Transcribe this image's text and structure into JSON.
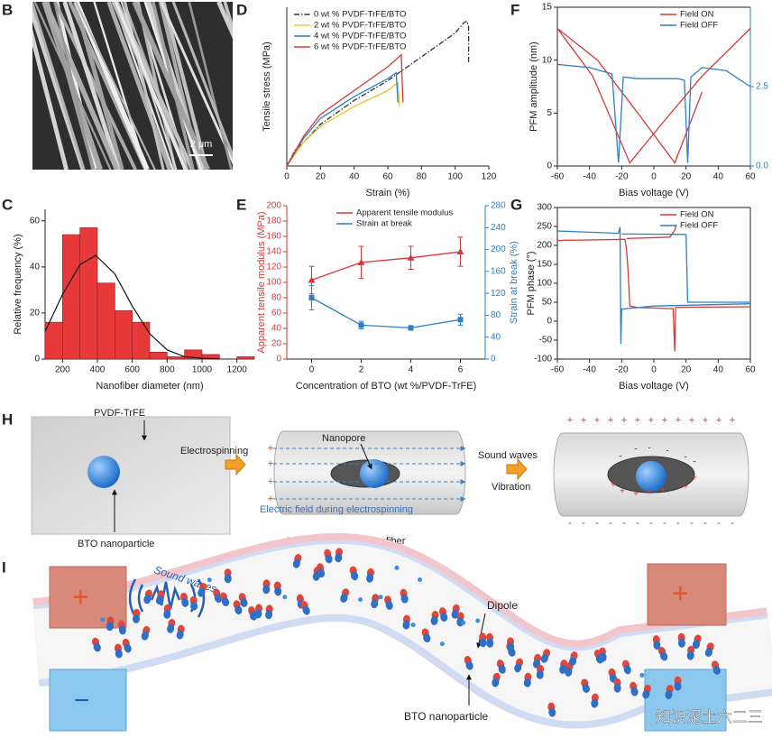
{
  "panel_labels": [
    "B",
    "C",
    "D",
    "E",
    "F",
    "G",
    "H",
    "I"
  ],
  "panel_b": {
    "scale_bar": "2 μm"
  },
  "chart_data": [
    {
      "type": "line",
      "xlabel": "Strain (%)",
      "ylabel": "Tensile stress (MPa)",
      "xlim": [
        0,
        120
      ],
      "xticks": [
        0,
        20,
        40,
        60,
        80,
        100,
        120
      ],
      "ylim": [
        0,
        80
      ],
      "legend": "upper left",
      "series": [
        {
          "name": "0 wt % PVDF-TrFE/BTO",
          "color": "#333333",
          "dash": "dash-dot",
          "x": [
            0,
            5,
            10,
            20,
            40,
            60,
            80,
            100,
            105,
            107,
            108,
            108
          ],
          "values": [
            0,
            8,
            12,
            21,
            33,
            43,
            55,
            67,
            72,
            73,
            70,
            52
          ]
        },
        {
          "name": "2 wt % PVDF-TrFE/BTO",
          "color": "#f0c22e",
          "x": [
            0,
            10,
            20,
            40,
            60,
            66,
            67
          ],
          "values": [
            0,
            12,
            20,
            30,
            38,
            42,
            30
          ]
        },
        {
          "name": "4 wt % PVDF-TrFE/BTO",
          "color": "#2f7fc1",
          "x": [
            0,
            10,
            20,
            40,
            60,
            65,
            66
          ],
          "values": [
            0,
            14,
            24,
            35,
            44,
            47,
            32
          ]
        },
        {
          "name": "6 wt % PVDF-TrFE/BTO",
          "color": "#d43a3a",
          "x": [
            0,
            10,
            20,
            40,
            60,
            68,
            69
          ],
          "values": [
            0,
            15,
            26,
            38,
            50,
            56,
            32
          ]
        }
      ]
    },
    {
      "type": "line",
      "xlabel": "Bias voltage (V)",
      "ylabel": "PFM amplitude (nm)",
      "xlim": [
        -60,
        60
      ],
      "xticks": [
        -60,
        -40,
        -20,
        0,
        20,
        40,
        60
      ],
      "ylim": [
        0,
        15
      ],
      "yticks": [
        0,
        5,
        10,
        15
      ],
      "y2lim": [
        0,
        5
      ],
      "y2ticks": [
        {
          "value": 0,
          "label": "0.0"
        },
        {
          "value": 2.5,
          "label": "2.5"
        }
      ],
      "y2color": "#2f7fc1",
      "legend": "upper right",
      "series": [
        {
          "name": "Field ON",
          "color": "#d43a3a",
          "x": [
            -60,
            -38,
            -15,
            5,
            30,
            60,
            60,
            30,
            13,
            -10,
            -35,
            -60
          ],
          "values": [
            13,
            8.5,
            0.3,
            4,
            8.5,
            13,
            null,
            7,
            0.3,
            5,
            10,
            13
          ]
        },
        {
          "name": "Field OFF",
          "color": "#2f7fc1",
          "axis": "y2",
          "x": [
            -60,
            -40,
            -26,
            -22,
            -19,
            -10,
            15,
            19,
            21,
            23,
            30,
            45,
            60
          ],
          "values": [
            3.2,
            3.1,
            2.9,
            0.1,
            2.8,
            2.75,
            2.75,
            2.7,
            0.1,
            2.8,
            3.1,
            3.0,
            2.5
          ]
        }
      ]
    },
    {
      "type": "histogram",
      "xlabel": "Nanofiber diameter (nm)",
      "ylabel": "Relative frequency (%)",
      "bins": [
        100,
        200,
        300,
        400,
        500,
        600,
        700,
        800,
        900,
        1000,
        1100,
        1200,
        1300
      ],
      "values": [
        16,
        54,
        57,
        33,
        21,
        16,
        3,
        1,
        4,
        2,
        0,
        1
      ],
      "color": "#e8393a",
      "xlim": [
        100,
        1300
      ],
      "xticks": [
        200,
        400,
        600,
        800,
        1000,
        1200
      ],
      "ylim": [
        0,
        65
      ],
      "yticks": [
        0,
        20,
        40,
        60
      ],
      "fit_curve": {
        "color": "#111111",
        "x": [
          100,
          200,
          300,
          390,
          500,
          600,
          700,
          800,
          900,
          1000,
          1100
        ],
        "values": [
          12,
          28,
          41,
          45,
          37,
          23,
          11,
          4,
          1,
          0.3,
          0.1
        ]
      }
    },
    {
      "type": "line",
      "xlabel": "Concentration of BTO (wt %/PVDF-TrFE)",
      "ylabel": "Apparent tensile modulus (MPa)",
      "y2label": "Strain at break (%)",
      "xlim": [
        -1,
        7
      ],
      "xticks": [
        0,
        2,
        4,
        6
      ],
      "ylim": [
        0,
        200
      ],
      "yticks": [
        0,
        20,
        40,
        60,
        80,
        100,
        120,
        140,
        160,
        180,
        200
      ],
      "y2lim": [
        0,
        280
      ],
      "y2ticks": [
        0,
        40,
        80,
        120,
        160,
        200,
        240,
        280
      ],
      "ycolor": "#d43a3a",
      "y2color": "#2f7fc1",
      "legend": "upper center",
      "x": [
        0,
        2,
        4,
        6
      ],
      "series": [
        {
          "name": "Apparent tensile modulus",
          "color": "#d43a3a",
          "marker": "triangle",
          "values": [
            103,
            126,
            132,
            140
          ],
          "errors": [
            18,
            21,
            15,
            19
          ]
        },
        {
          "name": "Strain at break",
          "color": "#2f7fc1",
          "marker": "square",
          "axis": "y2",
          "values": [
            112,
            62,
            57,
            72
          ],
          "errors": [
            22,
            7,
            4,
            10
          ]
        }
      ]
    },
    {
      "type": "line",
      "xlabel": "Bias voltage (V)",
      "ylabel": "PFM phase (°)",
      "xlim": [
        -60,
        60
      ],
      "xticks": [
        -60,
        -40,
        -20,
        0,
        20,
        40,
        60
      ],
      "ylim": [
        -100,
        300
      ],
      "yticks": [
        -100,
        -50,
        0,
        50,
        100,
        150,
        200,
        250,
        300
      ],
      "legend": "upper right",
      "series": [
        {
          "name": "Field ON",
          "color": "#d43a3a",
          "x": [
            -60,
            -18,
            -17,
            -16,
            -15,
            -10,
            12,
            13,
            13.5,
            20,
            60,
            60,
            14,
            13,
            10,
            -17
          ],
          "values": [
            213,
            216,
            190,
            130,
            40,
            36,
            33,
            -80,
            36,
            37,
            38,
            null,
            255,
            240,
            222,
            218
          ]
        },
        {
          "name": "Field OFF",
          "color": "#2f7fc1",
          "x": [
            -60,
            -22,
            -21,
            -20.5,
            -20,
            0,
            60,
            60,
            -20,
            19,
            20,
            21,
            60
          ],
          "values": [
            238,
            232,
            248,
            -60,
            32,
            40,
            46,
            null,
            230,
            229,
            228,
            50,
            50
          ]
        }
      ]
    }
  ],
  "diagram_h": {
    "matrix": "PVDF-TrFE",
    "particle": "BTO nanoparticle",
    "step1": "Electrospinning",
    "pore": "Nanopore",
    "field": "Electric field during electrospinning",
    "fiber": "PVDF-TrFE/BTO nanofiber",
    "step2a": "Sound waves",
    "step2b": "Vibration",
    "plus": "+",
    "minus": "-"
  },
  "diagram_i": {
    "sound": "Sound waves",
    "dipole": "Dipole",
    "particle": "BTO nanoparticle",
    "plus": "+",
    "minus": "−"
  },
  "watermark": "知识泥土六二三"
}
